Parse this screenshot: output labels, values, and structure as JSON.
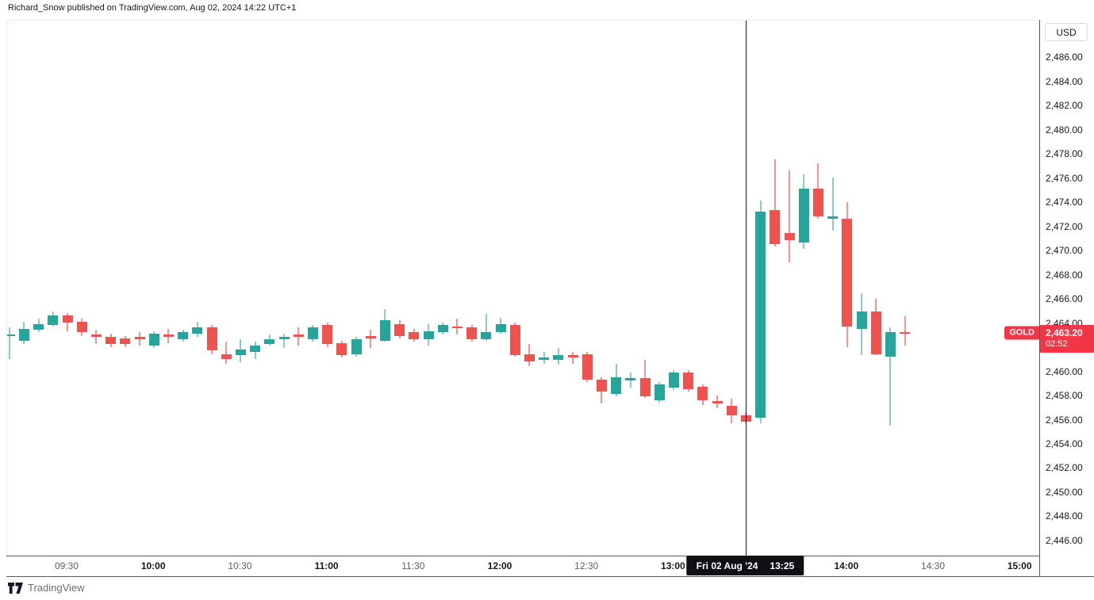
{
  "header": {
    "attribution": "Richard_Snow published on TradingView.com, Aug 02, 2024 14:22 UTC+1"
  },
  "footer": {
    "brand": "TradingView",
    "logo_icon": "tradingview-logo"
  },
  "price_axis": {
    "currency_button": "USD",
    "labels": [
      "2,486.00",
      "2,484.00",
      "2,482.00",
      "2,480.00",
      "2,478.00",
      "2,476.00",
      "2,474.00",
      "2,472.00",
      "2,470.00",
      "2,468.00",
      "2,466.00",
      "2,464.00",
      "2,462.00",
      "2,460.00",
      "2,458.00",
      "2,456.00",
      "2,454.00",
      "2,452.00",
      "2,450.00",
      "2,448.00",
      "2,446.00"
    ],
    "hidden_by_badge": "2,462.00",
    "last_price_badge": {
      "symbol": "GOLD",
      "price": "2,463.20",
      "countdown": "02:52",
      "color": "#f23645"
    }
  },
  "time_axis": {
    "labels": [
      {
        "text": "09:30",
        "emphasis": false
      },
      {
        "text": "10:00",
        "emphasis": true
      },
      {
        "text": "10:30",
        "emphasis": false
      },
      {
        "text": "11:00",
        "emphasis": true
      },
      {
        "text": "11:30",
        "emphasis": false
      },
      {
        "text": "12:00",
        "emphasis": true
      },
      {
        "text": "12:30",
        "emphasis": false
      },
      {
        "text": "13:00",
        "emphasis": true
      },
      {
        "text": "14:00",
        "emphasis": true
      },
      {
        "text": "14:30",
        "emphasis": false
      },
      {
        "text": "15:00",
        "emphasis": true
      }
    ],
    "crosshair_badge": {
      "date": "Fri 02 Aug '24",
      "time": "13:25"
    }
  },
  "crosshair": {
    "time": "13:25"
  },
  "chart_data": {
    "type": "candlestick",
    "symbol": "GOLD",
    "quote_currency": "USD",
    "interval_minutes": 5,
    "last_price": 2463.2,
    "up_color": "#26a69a",
    "down_color": "#ef5350",
    "grid": false,
    "y_axis": {
      "price_at_top": 2489.1,
      "price_at_bottom": 2444.75,
      "tick_interval": 2,
      "first_tick": 2486,
      "last_tick": 2446
    },
    "x_axis": {
      "first_candle": "09:10",
      "last_candle": "14:20",
      "anchor_label": "09:30"
    },
    "candles": [
      {
        "t": "09:10",
        "o": 2463.0,
        "h": 2463.7,
        "l": 2461.1,
        "c": 2463.1
      },
      {
        "t": "09:15",
        "o": 2462.6,
        "h": 2464.2,
        "l": 2462.3,
        "c": 2463.6
      },
      {
        "t": "09:20",
        "o": 2463.5,
        "h": 2464.4,
        "l": 2463.3,
        "c": 2464.0
      },
      {
        "t": "09:25",
        "o": 2463.9,
        "h": 2465.0,
        "l": 2463.8,
        "c": 2464.7
      },
      {
        "t": "09:30",
        "o": 2464.7,
        "h": 2464.9,
        "l": 2463.4,
        "c": 2464.1
      },
      {
        "t": "09:35",
        "o": 2464.2,
        "h": 2464.4,
        "l": 2463.0,
        "c": 2463.3
      },
      {
        "t": "09:40",
        "o": 2463.1,
        "h": 2463.5,
        "l": 2462.3,
        "c": 2462.9
      },
      {
        "t": "09:45",
        "o": 2462.9,
        "h": 2463.2,
        "l": 2462.1,
        "c": 2462.3
      },
      {
        "t": "09:50",
        "o": 2462.8,
        "h": 2463.0,
        "l": 2462.1,
        "c": 2462.3
      },
      {
        "t": "09:55",
        "o": 2462.9,
        "h": 2463.3,
        "l": 2462.2,
        "c": 2462.7
      },
      {
        "t": "10:00",
        "o": 2462.2,
        "h": 2463.4,
        "l": 2462.0,
        "c": 2463.2
      },
      {
        "t": "10:05",
        "o": 2463.1,
        "h": 2463.6,
        "l": 2462.4,
        "c": 2462.9
      },
      {
        "t": "10:10",
        "o": 2462.7,
        "h": 2463.5,
        "l": 2462.5,
        "c": 2463.3
      },
      {
        "t": "10:15",
        "o": 2463.2,
        "h": 2464.2,
        "l": 2462.9,
        "c": 2463.7
      },
      {
        "t": "10:20",
        "o": 2463.7,
        "h": 2463.9,
        "l": 2461.5,
        "c": 2461.8
      },
      {
        "t": "10:25",
        "o": 2461.5,
        "h": 2462.5,
        "l": 2460.7,
        "c": 2461.1
      },
      {
        "t": "10:30",
        "o": 2461.4,
        "h": 2462.7,
        "l": 2460.8,
        "c": 2461.9
      },
      {
        "t": "10:35",
        "o": 2461.7,
        "h": 2462.5,
        "l": 2461.1,
        "c": 2462.2
      },
      {
        "t": "10:40",
        "o": 2462.3,
        "h": 2463.1,
        "l": 2462.2,
        "c": 2462.7
      },
      {
        "t": "10:45",
        "o": 2462.7,
        "h": 2463.2,
        "l": 2462.0,
        "c": 2462.9
      },
      {
        "t": "10:50",
        "o": 2463.1,
        "h": 2463.7,
        "l": 2462.2,
        "c": 2462.9
      },
      {
        "t": "10:55",
        "o": 2462.7,
        "h": 2463.9,
        "l": 2462.5,
        "c": 2463.7
      },
      {
        "t": "11:00",
        "o": 2463.9,
        "h": 2464.1,
        "l": 2462.1,
        "c": 2462.3
      },
      {
        "t": "11:05",
        "o": 2462.4,
        "h": 2462.6,
        "l": 2461.2,
        "c": 2461.4
      },
      {
        "t": "11:10",
        "o": 2461.5,
        "h": 2462.9,
        "l": 2461.3,
        "c": 2462.7
      },
      {
        "t": "11:15",
        "o": 2463.0,
        "h": 2463.5,
        "l": 2462.0,
        "c": 2462.8
      },
      {
        "t": "11:20",
        "o": 2462.6,
        "h": 2465.2,
        "l": 2462.5,
        "c": 2464.3
      },
      {
        "t": "11:25",
        "o": 2464.0,
        "h": 2464.3,
        "l": 2462.8,
        "c": 2463.0
      },
      {
        "t": "11:30",
        "o": 2463.3,
        "h": 2463.6,
        "l": 2462.5,
        "c": 2462.7
      },
      {
        "t": "11:35",
        "o": 2462.7,
        "h": 2464.0,
        "l": 2462.2,
        "c": 2463.4
      },
      {
        "t": "11:40",
        "o": 2463.3,
        "h": 2464.1,
        "l": 2463.1,
        "c": 2463.9
      },
      {
        "t": "11:45",
        "o": 2463.8,
        "h": 2464.4,
        "l": 2463.1,
        "c": 2463.7
      },
      {
        "t": "11:50",
        "o": 2463.7,
        "h": 2463.9,
        "l": 2462.5,
        "c": 2462.7
      },
      {
        "t": "11:55",
        "o": 2462.7,
        "h": 2464.8,
        "l": 2462.6,
        "c": 2463.3
      },
      {
        "t": "12:00",
        "o": 2463.3,
        "h": 2464.5,
        "l": 2463.2,
        "c": 2464.0
      },
      {
        "t": "12:05",
        "o": 2463.9,
        "h": 2464.1,
        "l": 2461.3,
        "c": 2461.4
      },
      {
        "t": "12:10",
        "o": 2461.5,
        "h": 2462.3,
        "l": 2460.5,
        "c": 2460.9
      },
      {
        "t": "12:15",
        "o": 2461.0,
        "h": 2461.7,
        "l": 2460.7,
        "c": 2461.2
      },
      {
        "t": "12:20",
        "o": 2461.0,
        "h": 2462.0,
        "l": 2460.6,
        "c": 2461.4
      },
      {
        "t": "12:25",
        "o": 2461.4,
        "h": 2461.7,
        "l": 2460.7,
        "c": 2461.2
      },
      {
        "t": "12:30",
        "o": 2461.5,
        "h": 2461.7,
        "l": 2459.2,
        "c": 2459.4
      },
      {
        "t": "12:35",
        "o": 2459.4,
        "h": 2459.6,
        "l": 2457.4,
        "c": 2458.4
      },
      {
        "t": "12:40",
        "o": 2458.2,
        "h": 2460.7,
        "l": 2458.0,
        "c": 2459.6
      },
      {
        "t": "12:45",
        "o": 2459.3,
        "h": 2460.0,
        "l": 2458.7,
        "c": 2459.5
      },
      {
        "t": "12:50",
        "o": 2459.5,
        "h": 2461.0,
        "l": 2457.9,
        "c": 2458.0
      },
      {
        "t": "12:55",
        "o": 2457.7,
        "h": 2459.2,
        "l": 2457.5,
        "c": 2459.0
      },
      {
        "t": "13:00",
        "o": 2458.7,
        "h": 2460.2,
        "l": 2458.5,
        "c": 2460.0
      },
      {
        "t": "13:05",
        "o": 2460.0,
        "h": 2460.2,
        "l": 2458.4,
        "c": 2458.6
      },
      {
        "t": "13:10",
        "o": 2458.8,
        "h": 2459.0,
        "l": 2457.3,
        "c": 2457.7
      },
      {
        "t": "13:15",
        "o": 2457.6,
        "h": 2458.1,
        "l": 2457.0,
        "c": 2457.4
      },
      {
        "t": "13:20",
        "o": 2457.2,
        "h": 2457.8,
        "l": 2455.8,
        "c": 2456.4
      },
      {
        "t": "13:25",
        "o": 2456.4,
        "h": 2456.6,
        "l": 2455.8,
        "c": 2455.9
      },
      {
        "t": "13:30",
        "o": 2456.2,
        "h": 2474.2,
        "l": 2455.8,
        "c": 2473.3
      },
      {
        "t": "13:35",
        "o": 2473.4,
        "h": 2477.6,
        "l": 2470.4,
        "c": 2470.6
      },
      {
        "t": "13:40",
        "o": 2471.5,
        "h": 2476.7,
        "l": 2469.1,
        "c": 2470.9
      },
      {
        "t": "13:45",
        "o": 2470.7,
        "h": 2476.4,
        "l": 2470.2,
        "c": 2475.2
      },
      {
        "t": "13:50",
        "o": 2475.2,
        "h": 2477.3,
        "l": 2472.7,
        "c": 2472.9
      },
      {
        "t": "13:55",
        "o": 2472.7,
        "h": 2476.1,
        "l": 2471.7,
        "c": 2472.9
      },
      {
        "t": "14:00",
        "o": 2472.7,
        "h": 2474.1,
        "l": 2462.1,
        "c": 2463.8
      },
      {
        "t": "14:05",
        "o": 2463.6,
        "h": 2466.5,
        "l": 2461.4,
        "c": 2465.0
      },
      {
        "t": "14:10",
        "o": 2465.0,
        "h": 2466.1,
        "l": 2461.4,
        "c": 2461.5
      },
      {
        "t": "14:15",
        "o": 2461.3,
        "h": 2463.7,
        "l": 2455.6,
        "c": 2463.3
      },
      {
        "t": "14:20",
        "o": 2463.3,
        "h": 2464.6,
        "l": 2462.2,
        "c": 2463.2
      }
    ]
  }
}
